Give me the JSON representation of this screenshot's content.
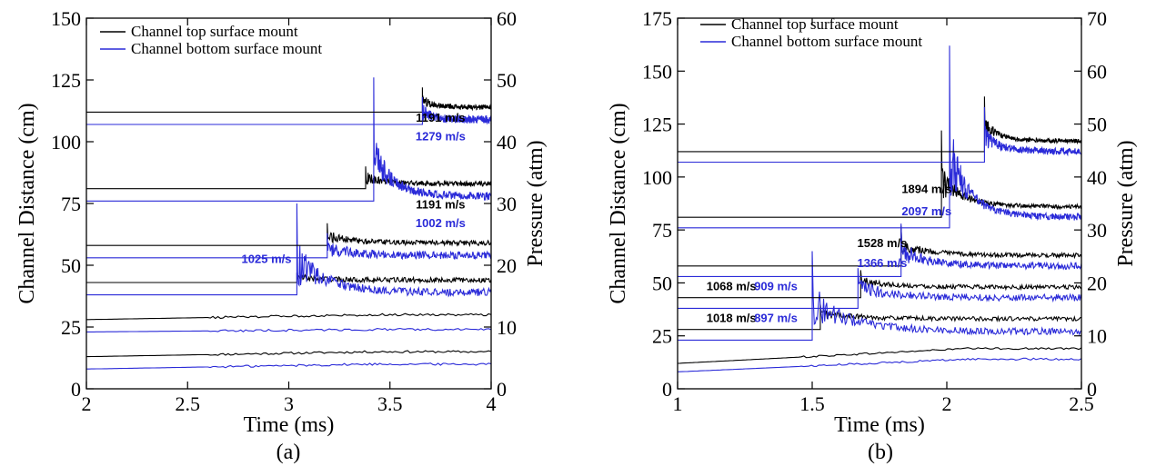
{
  "chart_data": [
    {
      "type": "line",
      "caption": "(a)",
      "xlabel": "Time (ms)",
      "ylabel": "Channel Distance (cm)",
      "y2label": "Pressure (atm)",
      "xlim": [
        2,
        4
      ],
      "ylim": [
        0,
        150
      ],
      "y2lim": [
        0,
        60
      ],
      "xticks": [
        "2",
        "2.5",
        "3",
        "3.5",
        "4"
      ],
      "yticks": [
        "0",
        "25",
        "50",
        "75",
        "100",
        "125",
        "150"
      ],
      "y2ticks": [
        "0",
        "10",
        "20",
        "30",
        "40",
        "50",
        "60"
      ],
      "legend": {
        "position": "top-left",
        "entries": [
          "Channel top surface mount",
          "Channel bottom surface mount"
        ]
      },
      "colors": {
        "top": "#000000",
        "bottom": "#2a2ad8"
      },
      "series": [
        {
          "name": "Channel top surface mount",
          "color": "#000000",
          "baseline_cm": 13,
          "end_cm": 15,
          "arrival_ms": null,
          "spike_cm": null
        },
        {
          "name": "Channel bottom surface mount",
          "color": "#2a2ad8",
          "baseline_cm": 8,
          "end_cm": 10,
          "arrival_ms": null,
          "spike_cm": null
        },
        {
          "name": "Channel top surface mount",
          "color": "#000000",
          "baseline_cm": 28,
          "end_cm": 30,
          "arrival_ms": null,
          "spike_cm": null
        },
        {
          "name": "Channel bottom surface mount",
          "color": "#2a2ad8",
          "baseline_cm": 23,
          "end_cm": 24,
          "arrival_ms": null,
          "spike_cm": null
        },
        {
          "name": "Channel top surface mount",
          "color": "#000000",
          "baseline_cm": 43,
          "end_cm": 44,
          "arrival_ms": 3.04,
          "spike_cm": 47
        },
        {
          "name": "Channel bottom surface mount",
          "color": "#2a2ad8",
          "baseline_cm": 38,
          "end_cm": 39,
          "arrival_ms": 3.04,
          "spike_cm": 75
        },
        {
          "name": "Channel top surface mount",
          "color": "#000000",
          "baseline_cm": 58,
          "end_cm": 59,
          "arrival_ms": 3.19,
          "spike_cm": 67
        },
        {
          "name": "Channel bottom surface mount",
          "color": "#2a2ad8",
          "baseline_cm": 53,
          "end_cm": 54,
          "arrival_ms": 3.19,
          "spike_cm": 63
        },
        {
          "name": "Channel top surface mount",
          "color": "#000000",
          "baseline_cm": 81,
          "end_cm": 83,
          "arrival_ms": 3.38,
          "spike_cm": 90
        },
        {
          "name": "Channel bottom surface mount",
          "color": "#2a2ad8",
          "baseline_cm": 76,
          "end_cm": 78,
          "arrival_ms": 3.42,
          "spike_cm": 126
        },
        {
          "name": "Channel top surface mount",
          "color": "#000000",
          "baseline_cm": 112,
          "end_cm": 114,
          "arrival_ms": 3.66,
          "spike_cm": 122
        },
        {
          "name": "Channel bottom surface mount",
          "color": "#2a2ad8",
          "baseline_cm": 107,
          "end_cm": 109,
          "arrival_ms": 3.66,
          "spike_cm": 118
        }
      ],
      "annotations": [
        {
          "text": "1191 m/s",
          "color": "#000000",
          "x": 3.75,
          "y": 108
        },
        {
          "text": "1279 m/s",
          "color": "#2a2ad8",
          "x": 3.75,
          "y": 100.5
        },
        {
          "text": "1191 m/s",
          "color": "#000000",
          "x": 3.75,
          "y": 73
        },
        {
          "text": "1002 m/s",
          "color": "#2a2ad8",
          "x": 3.75,
          "y": 65.5
        },
        {
          "text": "1025 m/s",
          "color": "#2a2ad8",
          "x": 2.89,
          "y": 51
        }
      ]
    },
    {
      "type": "line",
      "caption": "(b)",
      "xlabel": "Time (ms)",
      "ylabel": "Channel Distance (cm)",
      "y2label": "Pressure (atm)",
      "xlim": [
        1,
        2.5
      ],
      "ylim": [
        0,
        175
      ],
      "y2lim": [
        0,
        70
      ],
      "xticks": [
        "1",
        "1.5",
        "2",
        "2.5"
      ],
      "yticks": [
        "0",
        "25",
        "50",
        "75",
        "100",
        "125",
        "150",
        "175"
      ],
      "y2ticks": [
        "0",
        "10",
        "20",
        "30",
        "40",
        "50",
        "60",
        "70"
      ],
      "legend": {
        "position": "top-left",
        "entries": [
          "Channel top surface mount",
          "Channel bottom surface mount"
        ]
      },
      "colors": {
        "top": "#000000",
        "bottom": "#2a2ad8"
      },
      "series": [
        {
          "name": "Channel top surface mount",
          "color": "#000000",
          "baseline_cm": 12,
          "end_cm": 19,
          "arrival_ms": null,
          "spike_cm": null
        },
        {
          "name": "Channel bottom surface mount",
          "color": "#2a2ad8",
          "baseline_cm": 8,
          "end_cm": 14,
          "arrival_ms": null,
          "spike_cm": null
        },
        {
          "name": "Channel top surface mount",
          "color": "#000000",
          "baseline_cm": 28,
          "end_cm": 33,
          "arrival_ms": 1.53,
          "spike_cm": 40
        },
        {
          "name": "Channel bottom surface mount",
          "color": "#2a2ad8",
          "baseline_cm": 23,
          "end_cm": 27,
          "arrival_ms": 1.5,
          "spike_cm": 65
        },
        {
          "name": "Channel top surface mount",
          "color": "#000000",
          "baseline_cm": 43,
          "end_cm": 48,
          "arrival_ms": 1.68,
          "spike_cm": 56
        },
        {
          "name": "Channel bottom surface mount",
          "color": "#2a2ad8",
          "baseline_cm": 38,
          "end_cm": 43,
          "arrival_ms": 1.67,
          "spike_cm": 57
        },
        {
          "name": "Channel top surface mount",
          "color": "#000000",
          "baseline_cm": 58,
          "end_cm": 63,
          "arrival_ms": 1.83,
          "spike_cm": 77
        },
        {
          "name": "Channel bottom surface mount",
          "color": "#2a2ad8",
          "baseline_cm": 53,
          "end_cm": 58,
          "arrival_ms": 1.83,
          "spike_cm": 78
        },
        {
          "name": "Channel top surface mount",
          "color": "#000000",
          "baseline_cm": 81,
          "end_cm": 86,
          "arrival_ms": 1.98,
          "spike_cm": 122
        },
        {
          "name": "Channel bottom surface mount",
          "color": "#2a2ad8",
          "baseline_cm": 76,
          "end_cm": 81,
          "arrival_ms": 2.01,
          "spike_cm": 162
        },
        {
          "name": "Channel top surface mount",
          "color": "#000000",
          "baseline_cm": 112,
          "end_cm": 117,
          "arrival_ms": 2.14,
          "spike_cm": 138
        },
        {
          "name": "Channel bottom surface mount",
          "color": "#2a2ad8",
          "baseline_cm": 107,
          "end_cm": 112,
          "arrival_ms": 2.14,
          "spike_cm": 133
        }
      ],
      "annotations": [
        {
          "text": "1894 m/s",
          "color": "#000000",
          "x": 1.925,
          "y": 92.5
        },
        {
          "text": "2097 m/s",
          "color": "#2a2ad8",
          "x": 1.925,
          "y": 82
        },
        {
          "text": "1528 m/s",
          "color": "#000000",
          "x": 1.76,
          "y": 67
        },
        {
          "text": "1366 m/s",
          "color": "#2a2ad8",
          "x": 1.76,
          "y": 57.5
        },
        {
          "text": "1068 m/s",
          "color": "#000000",
          "x": 1.2,
          "y": 46.5
        },
        {
          "text": "909 m/s",
          "color": "#2a2ad8",
          "x": 1.365,
          "y": 46.5
        },
        {
          "text": "1018 m/s",
          "color": "#000000",
          "x": 1.2,
          "y": 31.5
        },
        {
          "text": "897 m/s",
          "color": "#2a2ad8",
          "x": 1.365,
          "y": 31.5
        }
      ]
    }
  ]
}
